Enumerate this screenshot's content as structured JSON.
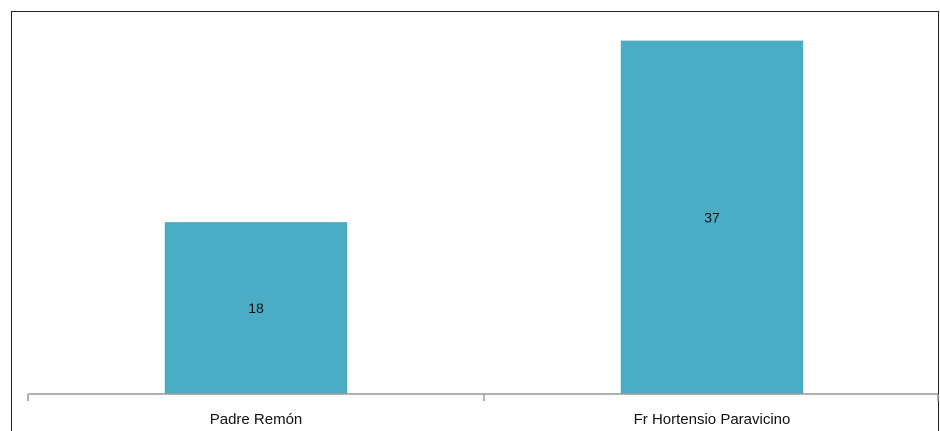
{
  "chart_data": {
    "type": "bar",
    "categories": [
      "Padre Remón",
      "Fr Hortensio Paravicino"
    ],
    "values": [
      18,
      37
    ],
    "title": "",
    "xlabel": "",
    "ylabel": "",
    "ylim": [
      0,
      40
    ],
    "grid": false,
    "legend": "none",
    "data_labels": true,
    "colors": {
      "bar": "#4BACC6",
      "axis": "#999999"
    }
  }
}
